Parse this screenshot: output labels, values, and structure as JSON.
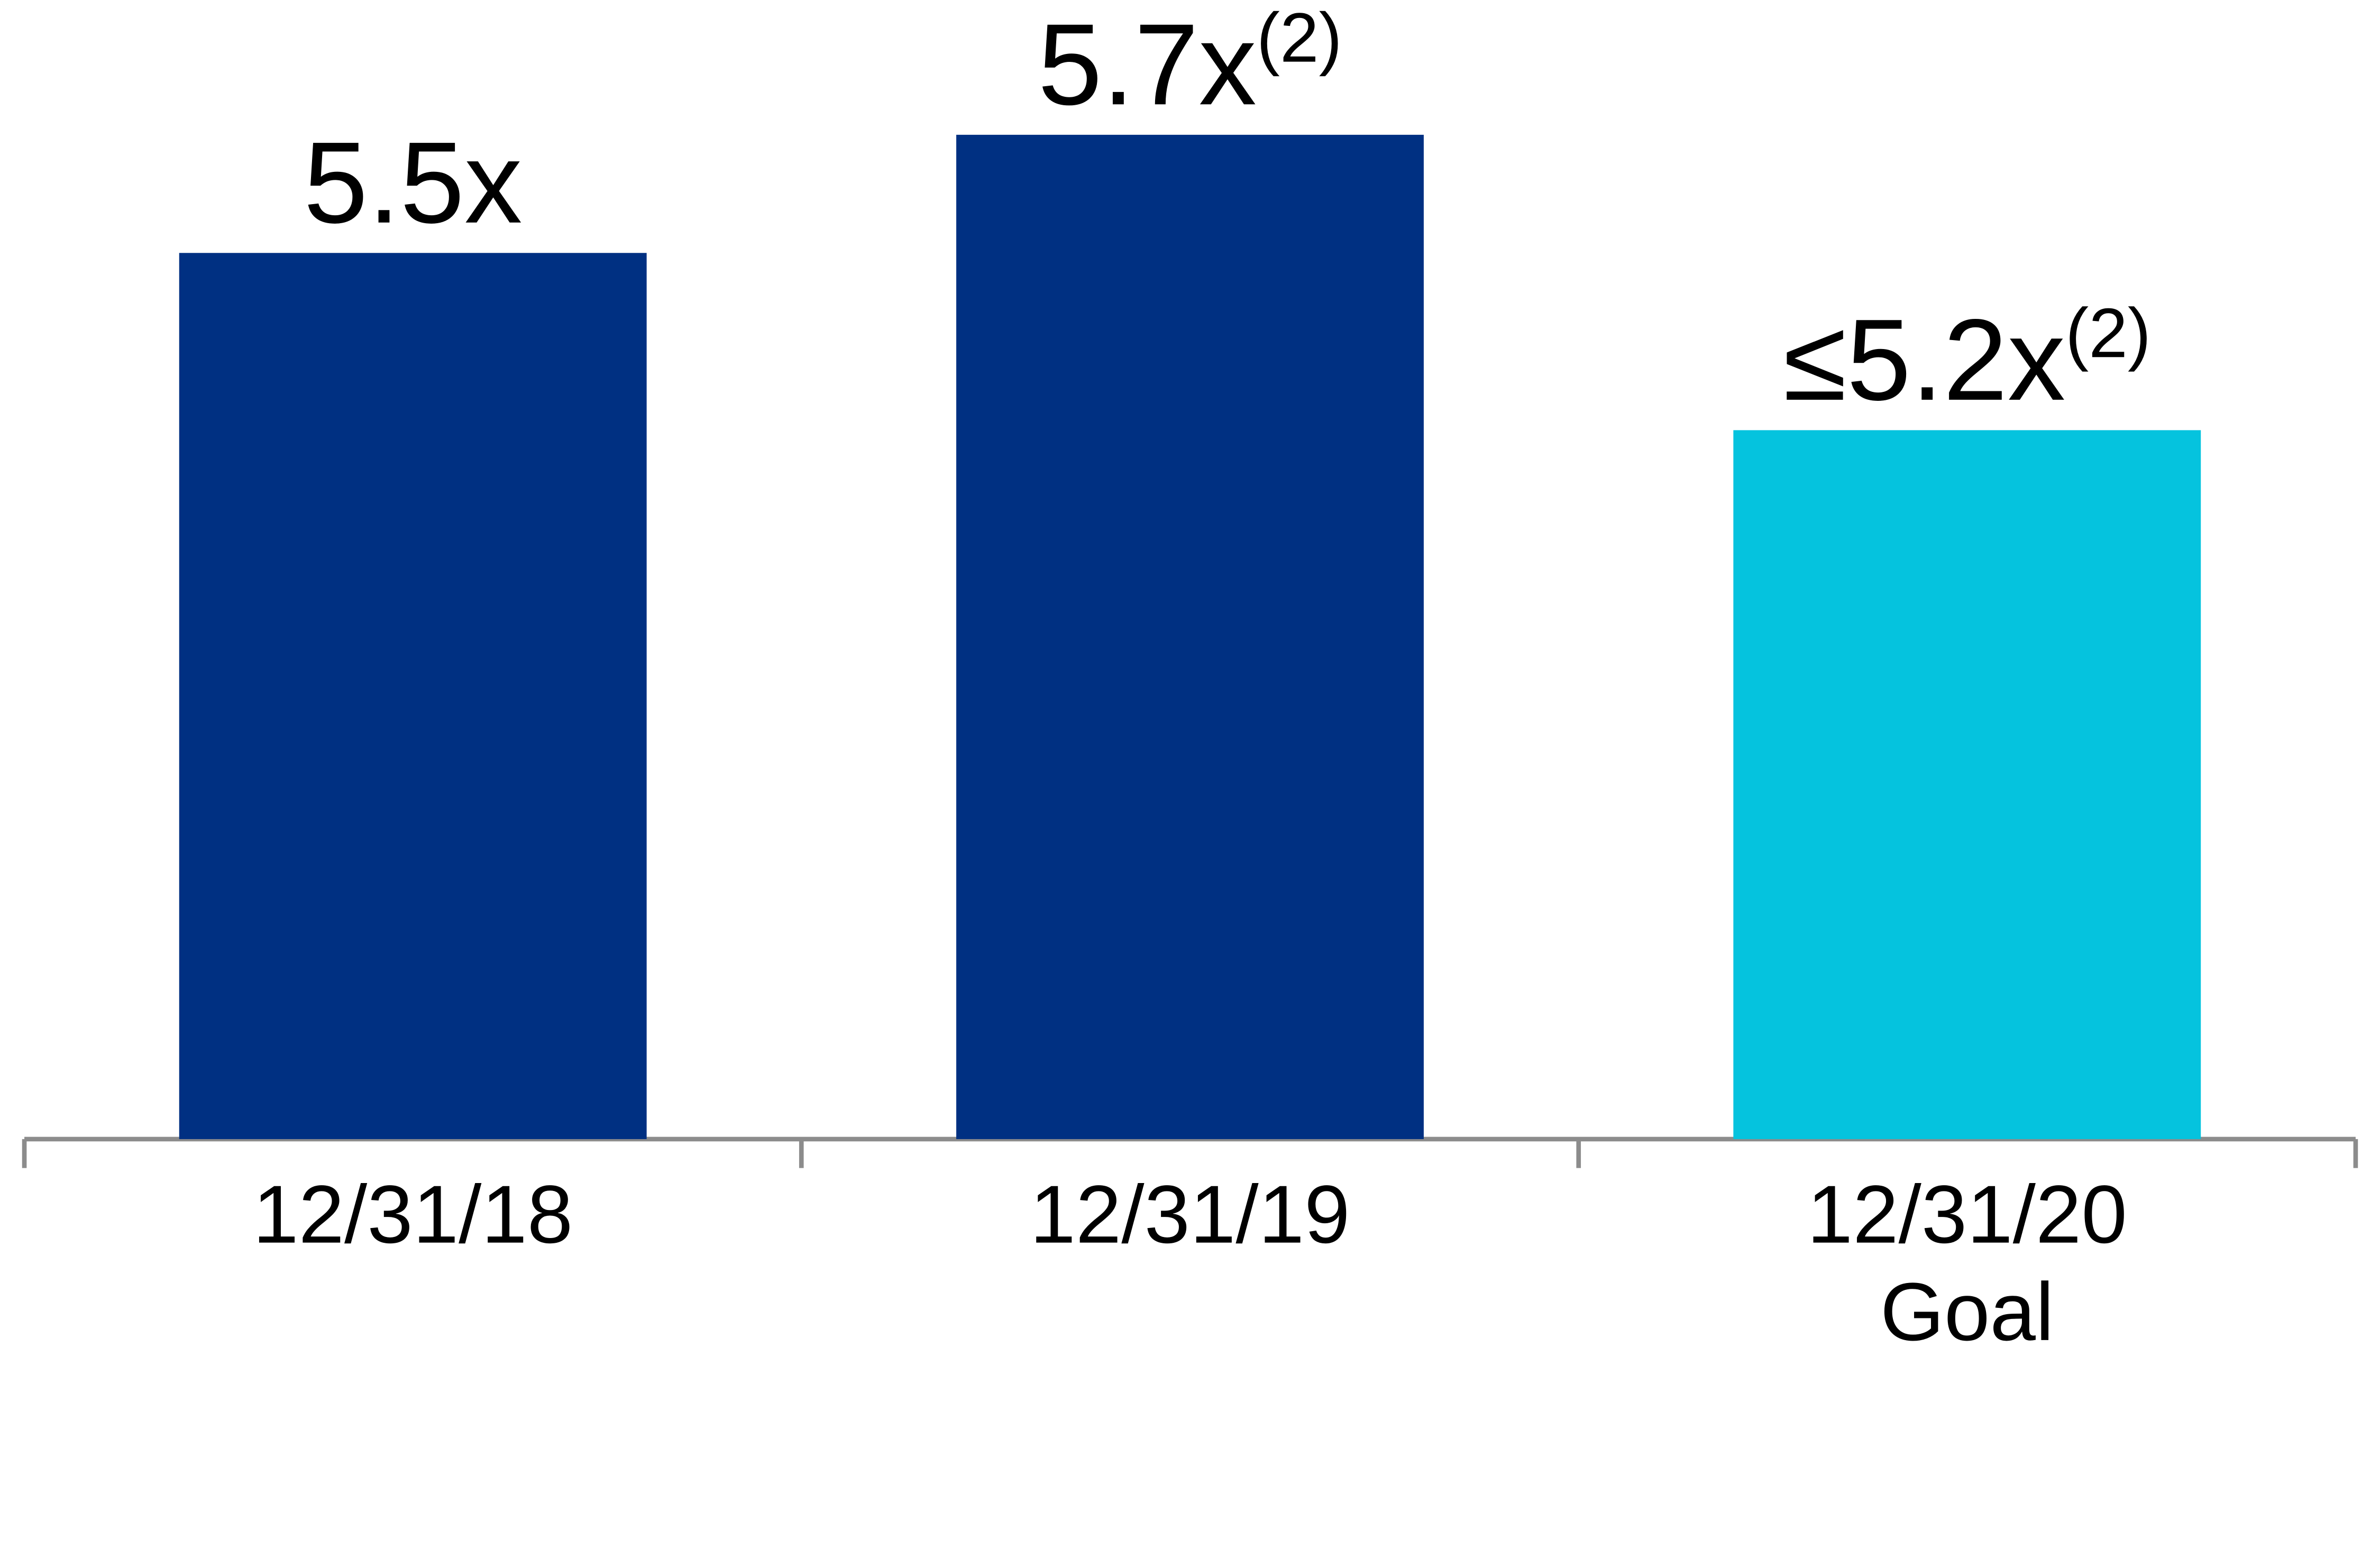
{
  "chart_data": {
    "type": "bar",
    "categories": [
      "12/31/18",
      "12/31/19",
      "12/31/20"
    ],
    "category_sublabels": [
      null,
      null,
      "Goal"
    ],
    "values": [
      5.5,
      5.7,
      5.2
    ],
    "value_labels": [
      "5.5x",
      "5.7x",
      "≤5.2x"
    ],
    "value_notes": [
      null,
      "(2)",
      "(2)"
    ],
    "colors": [
      "#003082",
      "#003082",
      "#05c3de"
    ],
    "ylim": [
      4,
      6
    ]
  }
}
